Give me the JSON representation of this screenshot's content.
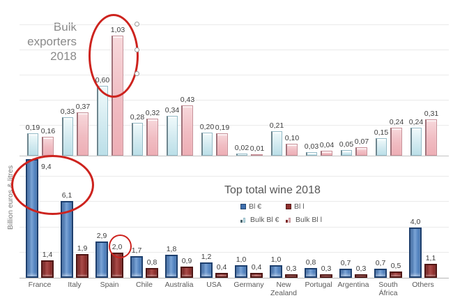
{
  "titles": {
    "bulk_title": "Bulk exporters 2018",
    "bulk_lines": [
      "Bulk",
      "exporters",
      "2018"
    ],
    "bottom_title": "Top total wine 2018",
    "y_axis_label": "Billion euros & litres"
  },
  "legend": {
    "items": [
      {
        "label": "Bl €",
        "swatch": "blue-square"
      },
      {
        "label": "Bl l",
        "swatch": "darkred-square"
      },
      {
        "label": "Bulk Bl €",
        "swatch": "cyan-mini-bars"
      },
      {
        "label": "Bulk Bl l",
        "swatch": "pink-mini-bars"
      }
    ]
  },
  "colors": {
    "bulk_eur_bar": "#cfe9ef",
    "bulk_l_bar": "#f0b9bf",
    "bl_eur_bar": "#4a7cba",
    "bl_l_bar": "#8e2f2d",
    "annotation_red": "#cd231e",
    "title_gray": "#8a8a8a",
    "text_gray": "#595959"
  },
  "chart_data": [
    {
      "id": "bulk-exporters",
      "type": "bar",
      "title": "Bulk exporters 2018",
      "categories": [
        "France",
        "Italy",
        "Spain",
        "Chile",
        "Australia",
        "USA",
        "Germany",
        "New Zealand",
        "Portugal",
        "Argentina",
        "South África",
        "Others"
      ],
      "series": [
        {
          "name": "Bulk Bl €",
          "values": [
            0.19,
            0.33,
            0.6,
            0.28,
            0.34,
            0.2,
            0.02,
            0.21,
            0.03,
            0.05,
            0.15,
            0.24
          ]
        },
        {
          "name": "Bulk Bl l",
          "values": [
            0.16,
            0.37,
            1.03,
            0.32,
            0.43,
            0.19,
            0.01,
            0.1,
            0.04,
            0.07,
            0.24,
            0.31
          ]
        }
      ],
      "decimals": 2,
      "decimal_separator": ",",
      "ylim": [
        0,
        1.2
      ],
      "gridlines": true,
      "legend_position": "none",
      "category_labels_shown": false
    },
    {
      "id": "top-total-wine",
      "type": "bar",
      "title": "Top total wine 2018",
      "ylabel": "Billion euros & litres",
      "categories": [
        "France",
        "Italy",
        "Spain",
        "Chile",
        "Australia",
        "USA",
        "Germany",
        "New Zealand",
        "Portugal",
        "Argentina",
        "South África",
        "Others"
      ],
      "series": [
        {
          "name": "Bl €",
          "values": [
            9.4,
            6.1,
            2.9,
            1.7,
            1.8,
            1.2,
            1.0,
            1.0,
            0.8,
            0.7,
            0.7,
            4.0
          ]
        },
        {
          "name": "Bl l",
          "values": [
            1.4,
            1.9,
            2.0,
            0.8,
            0.9,
            0.4,
            0.4,
            0.3,
            0.3,
            0.3,
            0.5,
            1.1
          ]
        }
      ],
      "decimals": 1,
      "decimal_separator": ",",
      "ylim": [
        0,
        10
      ],
      "gridlines": true,
      "legend_position": "top-center",
      "category_labels_shown": true
    }
  ],
  "annotations": [
    {
      "shape": "ellipse",
      "target": "spain-bulk-bars",
      "color": "#cd231e"
    },
    {
      "shape": "ellipse",
      "target": "france-italy-total-bars",
      "color": "#cd231e"
    },
    {
      "shape": "circle",
      "target": "spain-bl-l-value-label",
      "color": "#cd231e"
    },
    {
      "shape": "selection-handles",
      "target": "spain-ellipse-right-edge",
      "count": 3
    }
  ]
}
